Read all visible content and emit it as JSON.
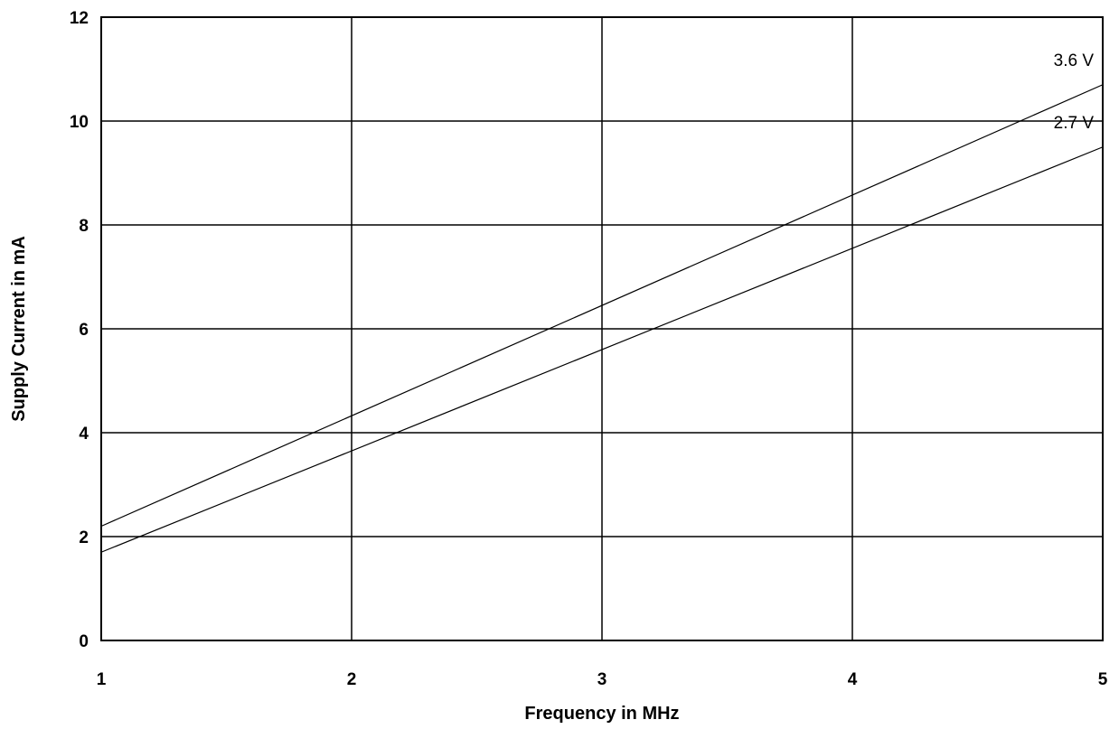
{
  "chart_data": {
    "type": "line",
    "xlabel": "Frequency in MHz",
    "ylabel": "Supply Current in mA",
    "xlim": [
      1,
      5
    ],
    "ylim": [
      0,
      12
    ],
    "x_ticks": [
      1,
      2,
      3,
      4,
      5
    ],
    "y_ticks": [
      0,
      2,
      4,
      6,
      8,
      10,
      12
    ],
    "grid": true,
    "series": [
      {
        "name": "3.6 V",
        "x": [
          1,
          5
        ],
        "y": [
          2.2,
          10.7
        ]
      },
      {
        "name": "2.7 V",
        "x": [
          1,
          5
        ],
        "y": [
          1.7,
          9.5
        ]
      }
    ]
  }
}
